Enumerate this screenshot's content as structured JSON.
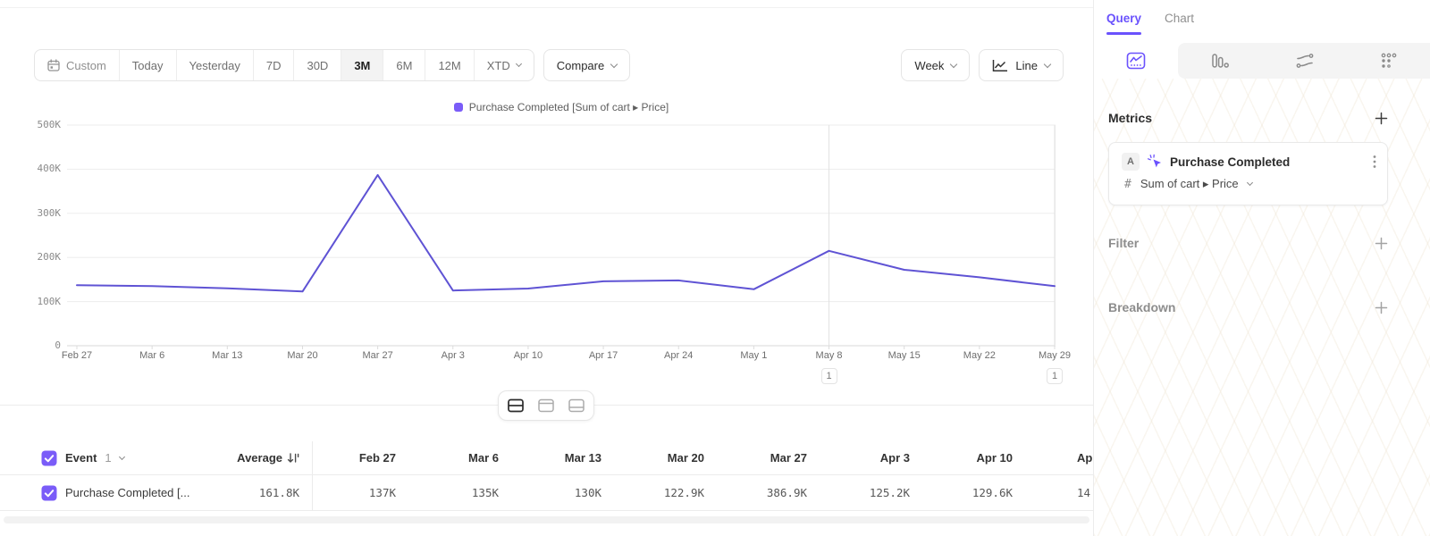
{
  "colors": {
    "accent": "#6a52fd",
    "series": "#5f53d4",
    "swatch": "#7a5cf8"
  },
  "toolbar": {
    "date_ranges": [
      "Custom",
      "Today",
      "Yesterday",
      "7D",
      "30D",
      "3M",
      "6M",
      "12M",
      "XTD"
    ],
    "active_range": "3M",
    "compare_label": "Compare",
    "interval_label": "Week",
    "chart_style_label": "Line"
  },
  "legend": {
    "label": "Purchase Completed [Sum of cart ▸ Price]"
  },
  "chart_data": {
    "type": "line",
    "title": "",
    "xlabel": "",
    "ylabel": "",
    "x": [
      "Feb 27",
      "Mar 6",
      "Mar 13",
      "Mar 20",
      "Mar 27",
      "Apr 3",
      "Apr 10",
      "Apr 17",
      "Apr 24",
      "May 1",
      "May 8",
      "May 15",
      "May 22",
      "May 29"
    ],
    "series": [
      {
        "name": "Purchase Completed [Sum of cart ▸ Price]",
        "values": [
          137000,
          135000,
          130000,
          122900,
          386900,
          125200,
          129600,
          146000,
          148000,
          128000,
          215000,
          172000,
          155000,
          135000
        ]
      }
    ],
    "ylim": [
      0,
      500000
    ],
    "yticks": [
      "0",
      "100K",
      "200K",
      "300K",
      "400K",
      "500K"
    ],
    "grid": true,
    "legend_position": "top",
    "annotations": [
      {
        "x_index": 10,
        "label": "1"
      },
      {
        "x_index": 13,
        "label": "1"
      }
    ]
  },
  "view_toggle": {
    "options": [
      "split-view",
      "chart-view",
      "table-view"
    ],
    "active": "split-view"
  },
  "table": {
    "event_label": "Event",
    "event_count": "1",
    "average_header": "Average",
    "row": {
      "label": "Purchase Completed [...",
      "average": "161.8K"
    },
    "columns": [
      {
        "header": "Feb 27",
        "value": "137K"
      },
      {
        "header": "Mar 6",
        "value": "135K"
      },
      {
        "header": "Mar 13",
        "value": "130K"
      },
      {
        "header": "Mar 20",
        "value": "122.9K"
      },
      {
        "header": "Mar 27",
        "value": "386.9K"
      },
      {
        "header": "Apr 3",
        "value": "125.2K"
      },
      {
        "header": "Apr 10",
        "value": "129.6K"
      },
      {
        "header": "Apr",
        "value": "14"
      }
    ]
  },
  "sidebar": {
    "tabs": [
      {
        "label": "Query",
        "active": true
      },
      {
        "label": "Chart",
        "active": false
      }
    ],
    "chart_types": [
      {
        "name": "line",
        "active": true
      },
      {
        "name": "bar",
        "active": false
      },
      {
        "name": "flow",
        "active": false
      },
      {
        "name": "grid",
        "active": false
      }
    ],
    "metrics": {
      "title": "Metrics",
      "card": {
        "badge": "A",
        "name": "Purchase Completed",
        "type_symbol": "#",
        "aggregation": "Sum of cart ▸ Price"
      }
    },
    "filter": {
      "title": "Filter"
    },
    "breakdown": {
      "title": "Breakdown"
    }
  }
}
